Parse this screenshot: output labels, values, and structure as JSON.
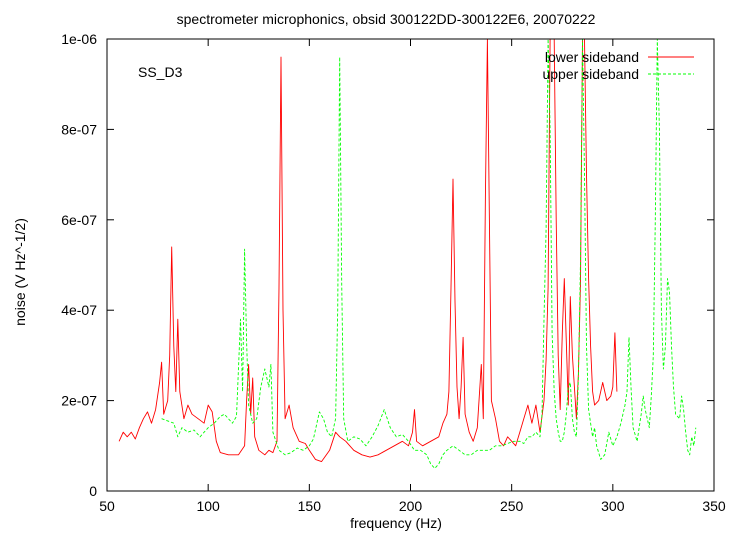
{
  "chart_data": {
    "type": "line",
    "title": "spectrometer microphonics, obsid 300122DD-300122E6, 20070222",
    "xlabel": "frequency (Hz)",
    "ylabel": "noise (V Hz^-1/2)",
    "annotation": "SS_D3",
    "xlim": [
      50,
      350
    ],
    "ylim": [
      0,
      1e-06
    ],
    "x_ticks": [
      50,
      100,
      150,
      200,
      250,
      300,
      350
    ],
    "y_ticks": [
      0,
      2e-07,
      4e-07,
      6e-07,
      8e-07,
      1e-06
    ],
    "x_tick_labels": [
      "50",
      "100",
      "150",
      "200",
      "250",
      "300",
      "350"
    ],
    "y_tick_labels": [
      "0",
      "2e-07",
      "4e-07",
      "6e-07",
      "8e-07",
      "1e-06"
    ],
    "legend_position": "top-right",
    "grid": false,
    "series": [
      {
        "name": "lower sideband",
        "color": "#ff0000",
        "dashed": false,
        "points": [
          [
            56,
            1.1e-07
          ],
          [
            58,
            1.3e-07
          ],
          [
            60,
            1.2e-07
          ],
          [
            62,
            1.3e-07
          ],
          [
            64,
            1.15e-07
          ],
          [
            66,
            1.4e-07
          ],
          [
            68,
            1.6e-07
          ],
          [
            70,
            1.75e-07
          ],
          [
            72,
            1.5e-07
          ],
          [
            74,
            1.8e-07
          ],
          [
            76,
            2.4e-07
          ],
          [
            77,
            2.85e-07
          ],
          [
            78,
            1.7e-07
          ],
          [
            80,
            2e-07
          ],
          [
            81,
            3e-07
          ],
          [
            82,
            5.4e-07
          ],
          [
            83,
            3.2e-07
          ],
          [
            84,
            2.2e-07
          ],
          [
            85,
            3.8e-07
          ],
          [
            86,
            2.2e-07
          ],
          [
            88,
            1.6e-07
          ],
          [
            90,
            1.9e-07
          ],
          [
            92,
            1.7e-07
          ],
          [
            95,
            1.6e-07
          ],
          [
            98,
            1.5e-07
          ],
          [
            100,
            1.9e-07
          ],
          [
            102,
            1.75e-07
          ],
          [
            104,
            1.1e-07
          ],
          [
            106,
            8.5e-08
          ],
          [
            110,
            8e-08
          ],
          [
            115,
            8e-08
          ],
          [
            118,
            1e-07
          ],
          [
            119,
            2e-07
          ],
          [
            120,
            2.8e-07
          ],
          [
            121,
            1.7e-07
          ],
          [
            122,
            2.5e-07
          ],
          [
            123,
            1.2e-07
          ],
          [
            125,
            9e-08
          ],
          [
            128,
            8e-08
          ],
          [
            130,
            9e-08
          ],
          [
            132,
            8.5e-08
          ],
          [
            134,
            1.1e-07
          ],
          [
            135,
            4.5e-07
          ],
          [
            136,
            9.6e-07
          ],
          [
            137,
            4e-07
          ],
          [
            138,
            1.6e-07
          ],
          [
            140,
            1.9e-07
          ],
          [
            142,
            1.4e-07
          ],
          [
            145,
            1.1e-07
          ],
          [
            148,
            1.05e-07
          ],
          [
            150,
            9e-08
          ],
          [
            153,
            7e-08
          ],
          [
            156,
            6.5e-08
          ],
          [
            160,
            9e-08
          ],
          [
            163,
            1.3e-07
          ],
          [
            165,
            1.2e-07
          ],
          [
            168,
            1.1e-07
          ],
          [
            172,
            9e-08
          ],
          [
            176,
            8e-08
          ],
          [
            180,
            7.5e-08
          ],
          [
            184,
            8e-08
          ],
          [
            188,
            9e-08
          ],
          [
            192,
            1e-07
          ],
          [
            196,
            1.1e-07
          ],
          [
            199,
            1e-07
          ],
          [
            201,
            1.3e-07
          ],
          [
            202,
            1.8e-07
          ],
          [
            203,
            1.1e-07
          ],
          [
            206,
            1e-07
          ],
          [
            210,
            1.1e-07
          ],
          [
            214,
            1.2e-07
          ],
          [
            216,
            1.5e-07
          ],
          [
            218,
            1.7e-07
          ],
          [
            219,
            2.2e-07
          ],
          [
            220,
            4.5e-07
          ],
          [
            221,
            6.9e-07
          ],
          [
            222,
            4.2e-07
          ],
          [
            223,
            2.3e-07
          ],
          [
            224,
            1.6e-07
          ],
          [
            225,
            2.3e-07
          ],
          [
            226,
            3.4e-07
          ],
          [
            227,
            1.7e-07
          ],
          [
            229,
            1.3e-07
          ],
          [
            231,
            1.1e-07
          ],
          [
            233,
            1.4e-07
          ],
          [
            235,
            2.8e-07
          ],
          [
            236,
            1.6e-07
          ],
          [
            237,
            6.5e-07
          ],
          [
            238,
            1e-06
          ],
          [
            239,
            6e-07
          ],
          [
            240,
            2e-07
          ],
          [
            242,
            1.6e-07
          ],
          [
            244,
            1.1e-07
          ],
          [
            246,
            1e-07
          ],
          [
            248,
            1.2e-07
          ],
          [
            250,
            1.1e-07
          ],
          [
            252,
            1e-07
          ],
          [
            254,
            1.3e-07
          ],
          [
            256,
            1.6e-07
          ],
          [
            258,
            1.9e-07
          ],
          [
            260,
            1.5e-07
          ],
          [
            262,
            1.9e-07
          ],
          [
            264,
            1.3e-07
          ],
          [
            266,
            2e-07
          ],
          [
            267,
            2.9e-07
          ],
          [
            268,
            4.5e-07
          ],
          [
            269,
            1e-06
          ],
          [
            270,
            1e-06
          ],
          [
            271,
            1e-06
          ],
          [
            272,
            6e-07
          ],
          [
            273,
            3e-07
          ],
          [
            274,
            1.8e-07
          ],
          [
            275,
            3.5e-07
          ],
          [
            276,
            4.7e-07
          ],
          [
            277,
            3.3e-07
          ],
          [
            278,
            1.9e-07
          ],
          [
            279,
            4.3e-07
          ],
          [
            280,
            3e-07
          ],
          [
            281,
            2.3e-07
          ],
          [
            282,
            1.6e-07
          ],
          [
            283,
            2.6e-07
          ],
          [
            284,
            4.6e-07
          ],
          [
            285,
            1e-06
          ],
          [
            286,
            1e-06
          ],
          [
            287,
            7e-07
          ],
          [
            288,
            4.7e-07
          ],
          [
            289,
            3.2e-07
          ],
          [
            290,
            2.2e-07
          ],
          [
            291,
            1.9e-07
          ],
          [
            293,
            2e-07
          ],
          [
            295,
            2.4e-07
          ],
          [
            297,
            2e-07
          ],
          [
            299,
            2.1e-07
          ],
          [
            300,
            2.3e-07
          ],
          [
            301,
            3.5e-07
          ],
          [
            302,
            2.2e-07
          ]
        ]
      },
      {
        "name": "upper sideband",
        "color": "#00ff00",
        "dashed": true,
        "points": [
          [
            77,
            1.6e-07
          ],
          [
            80,
            1.55e-07
          ],
          [
            83,
            1.5e-07
          ],
          [
            85,
            1.2e-07
          ],
          [
            87,
            1.4e-07
          ],
          [
            90,
            1.3e-07
          ],
          [
            93,
            1.35e-07
          ],
          [
            96,
            1.2e-07
          ],
          [
            98,
            1.3e-07
          ],
          [
            100,
            1.4e-07
          ],
          [
            103,
            1.5e-07
          ],
          [
            106,
            1.65e-07
          ],
          [
            108,
            1.7e-07
          ],
          [
            110,
            1.6e-07
          ],
          [
            112,
            1.5e-07
          ],
          [
            114,
            1.65e-07
          ],
          [
            116,
            3.8e-07
          ],
          [
            117,
            2.2e-07
          ],
          [
            118,
            5.35e-07
          ],
          [
            119,
            3.3e-07
          ],
          [
            120,
            1.9e-07
          ],
          [
            122,
            1.5e-07
          ],
          [
            124,
            1.6e-07
          ],
          [
            126,
            2.3e-07
          ],
          [
            128,
            2.7e-07
          ],
          [
            130,
            2.3e-07
          ],
          [
            131,
            2.8e-07
          ],
          [
            132,
            1.3e-07
          ],
          [
            135,
            9e-08
          ],
          [
            138,
            8e-08
          ],
          [
            141,
            8.5e-08
          ],
          [
            144,
            9.5e-08
          ],
          [
            147,
            9e-08
          ],
          [
            150,
            1e-07
          ],
          [
            152,
            1.15e-07
          ],
          [
            155,
            1.75e-07
          ],
          [
            157,
            1.6e-07
          ],
          [
            159,
            1.3e-07
          ],
          [
            161,
            1.2e-07
          ],
          [
            163,
            1.6e-07
          ],
          [
            164,
            4e-07
          ],
          [
            165,
            9.6e-07
          ],
          [
            166,
            4.6e-07
          ],
          [
            167,
            1.6e-07
          ],
          [
            169,
            1.1e-07
          ],
          [
            172,
            1.2e-07
          ],
          [
            175,
            1.15e-07
          ],
          [
            178,
            1e-07
          ],
          [
            181,
            1.2e-07
          ],
          [
            184,
            1.45e-07
          ],
          [
            187,
            1.8e-07
          ],
          [
            190,
            1.4e-07
          ],
          [
            193,
            1.2e-07
          ],
          [
            196,
            1.25e-07
          ],
          [
            199,
            1.1e-07
          ],
          [
            202,
            9e-08
          ],
          [
            205,
            9e-08
          ],
          [
            208,
            8e-08
          ],
          [
            210,
            6e-08
          ],
          [
            212,
            5e-08
          ],
          [
            214,
            6e-08
          ],
          [
            216,
            8e-08
          ],
          [
            218,
            9e-08
          ],
          [
            221,
            1e-07
          ],
          [
            224,
            9e-08
          ],
          [
            227,
            8e-08
          ],
          [
            230,
            8e-08
          ],
          [
            233,
            9e-08
          ],
          [
            236,
            9e-08
          ],
          [
            239,
            9e-08
          ],
          [
            242,
            1e-07
          ],
          [
            245,
            1e-07
          ],
          [
            248,
            1.05e-07
          ],
          [
            251,
            1.1e-07
          ],
          [
            254,
            1.1e-07
          ],
          [
            256,
            1.05e-07
          ],
          [
            258,
            1.2e-07
          ],
          [
            260,
            1.2e-07
          ],
          [
            262,
            1.3e-07
          ],
          [
            264,
            1.2e-07
          ],
          [
            265,
            1.7e-07
          ],
          [
            266,
            3.8e-07
          ],
          [
            267,
            5.8e-07
          ],
          [
            268,
            1e-06
          ],
          [
            269,
            8e-07
          ],
          [
            270,
            3.5e-07
          ],
          [
            271,
            2.2e-07
          ],
          [
            272,
            1.6e-07
          ],
          [
            273,
            1.3e-07
          ],
          [
            274,
            1.1e-07
          ],
          [
            275,
            1.1e-07
          ],
          [
            276,
            1.3e-07
          ],
          [
            277,
            1.7e-07
          ],
          [
            278,
            2.3e-07
          ],
          [
            279,
            2.4e-07
          ],
          [
            280,
            1.6e-07
          ],
          [
            281,
            1.3e-07
          ],
          [
            282,
            1.2e-07
          ],
          [
            283,
            2.5e-07
          ],
          [
            284,
            5.1e-07
          ],
          [
            285,
            1e-06
          ],
          [
            286,
            7e-07
          ],
          [
            287,
            3.2e-07
          ],
          [
            288,
            1.8e-07
          ],
          [
            289,
            1.5e-07
          ],
          [
            290,
            1.2e-07
          ],
          [
            291,
            1.4e-07
          ],
          [
            292,
            1e-07
          ],
          [
            294,
            7e-08
          ],
          [
            296,
            8e-08
          ],
          [
            298,
            1.3e-07
          ],
          [
            300,
            1e-07
          ],
          [
            302,
            1.2e-07
          ],
          [
            304,
            1.5e-07
          ],
          [
            306,
            1.9e-07
          ],
          [
            307,
            2.2e-07
          ],
          [
            308,
            3.4e-07
          ],
          [
            309,
            2.3e-07
          ],
          [
            310,
            1.4e-07
          ],
          [
            312,
            1.1e-07
          ],
          [
            314,
            1.7e-07
          ],
          [
            315,
            2.1e-07
          ],
          [
            316,
            1.8e-07
          ],
          [
            318,
            1.4e-07
          ],
          [
            319,
            2.1e-07
          ],
          [
            320,
            3e-07
          ],
          [
            321,
            6e-07
          ],
          [
            322,
            1e-06
          ],
          [
            323,
            8e-07
          ],
          [
            324,
            4e-07
          ],
          [
            325,
            2.7e-07
          ],
          [
            326,
            3.2e-07
          ],
          [
            327,
            4.7e-07
          ],
          [
            328,
            4.4e-07
          ],
          [
            329,
            3.2e-07
          ],
          [
            330,
            2.3e-07
          ],
          [
            331,
            1.7e-07
          ],
          [
            333,
            1.6e-07
          ],
          [
            334,
            2.1e-07
          ],
          [
            335,
            1.8e-07
          ],
          [
            336,
            1.3e-07
          ],
          [
            337,
            9e-08
          ],
          [
            338,
            8e-08
          ],
          [
            339,
            1.2e-07
          ],
          [
            340,
            1e-07
          ],
          [
            341,
            1.4e-07
          ]
        ]
      }
    ]
  }
}
